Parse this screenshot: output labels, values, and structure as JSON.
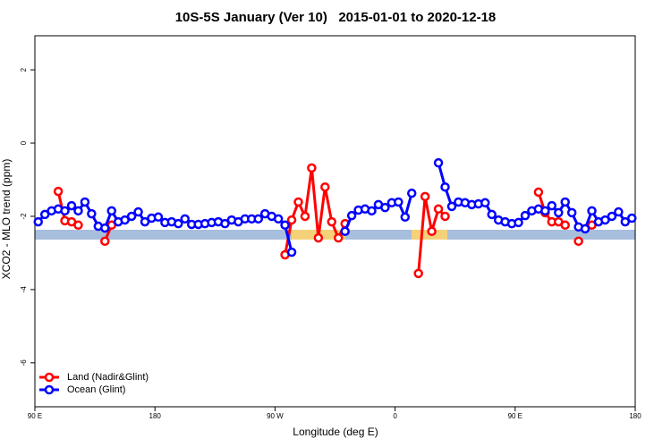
{
  "chart_data": {
    "type": "line",
    "title": "10S-5S January (Ver 10)   2015-01-01 to 2020-12-18",
    "x_label": "Longitude (deg E)",
    "y_label": "XCO2 - MLO trend (ppm)",
    "xlim": [
      90,
      540
    ],
    "xticks": [
      {
        "value": 90,
        "label": "90 E"
      },
      {
        "value": 180,
        "label": "180"
      },
      {
        "value": 270,
        "label": "90 W"
      },
      {
        "value": 360,
        "label": "0"
      },
      {
        "value": 450,
        "label": "90 E"
      },
      {
        "value": 540,
        "label": "180"
      }
    ],
    "ylim": [
      -7.2,
      2.93
    ],
    "yticks": [
      2,
      0,
      -2,
      -4,
      -6
    ],
    "legend": "bottom-left",
    "x": [
      92.5,
      97.5,
      102.5,
      107.5,
      112.5,
      117.5,
      122.5,
      127.5,
      132.5,
      137.5,
      142.5,
      147.5,
      152.5,
      157.5,
      162.5,
      167.5,
      172.5,
      177.5,
      182.5,
      187.5,
      192.5,
      197.5,
      202.5,
      207.5,
      212.5,
      217.5,
      222.5,
      227.5,
      232.5,
      237.5,
      242.5,
      247.5,
      252.5,
      257.5,
      262.5,
      267.5,
      272.5,
      277.5,
      282.5,
      287.5,
      292.5,
      297.5,
      302.5,
      307.5,
      312.5,
      317.5,
      322.5,
      327.5,
      332.5,
      337.5,
      342.5,
      347.5,
      352.5,
      357.5,
      362.5,
      367.5,
      372.5,
      377.5,
      382.5,
      387.5,
      392.5,
      397.5,
      402.5,
      407.5,
      412.5,
      417.5,
      422.5,
      427.5,
      432.5,
      437.5,
      442.5,
      447.5,
      452.5,
      457.5,
      462.5,
      467.5,
      472.5,
      477.5,
      482.5,
      487.5,
      492.5,
      497.5,
      502.5,
      507.5,
      512.5,
      517.5,
      522.5,
      527.5,
      532.5,
      537.5
    ],
    "series": [
      {
        "name": "Land (Nadir&Glint)",
        "color": "#ff0000",
        "values": [
          null,
          null,
          null,
          -1.32,
          -2.12,
          -2.15,
          -2.24,
          null,
          null,
          null,
          -2.68,
          -2.24,
          null,
          null,
          null,
          null,
          null,
          null,
          null,
          null,
          null,
          null,
          null,
          null,
          null,
          null,
          null,
          null,
          null,
          null,
          null,
          null,
          null,
          null,
          null,
          null,
          null,
          -3.05,
          -2.1,
          -1.61,
          -2.0,
          -0.68,
          -2.59,
          -1.2,
          -2.15,
          -2.59,
          -2.2,
          null,
          null,
          null,
          null,
          null,
          null,
          null,
          null,
          null,
          null,
          -3.56,
          -1.46,
          -2.41,
          -1.8,
          -2.0,
          null,
          null,
          null,
          null,
          null,
          null,
          null,
          null,
          null,
          null,
          null,
          null,
          null,
          -1.34,
          -1.9,
          -2.15,
          -2.15,
          -2.24,
          null,
          -2.68,
          null,
          -2.24,
          null,
          null,
          null,
          null,
          null,
          null
        ]
      },
      {
        "name": "Ocean (Glint)",
        "color": "#0000ff",
        "values": [
          -2.15,
          -1.95,
          -1.85,
          -1.8,
          -1.85,
          -1.71,
          -1.85,
          -1.61,
          -1.93,
          -2.27,
          -2.32,
          -1.85,
          -2.15,
          -2.1,
          -2.0,
          -1.88,
          -2.15,
          -2.05,
          -2.02,
          -2.17,
          -2.15,
          -2.2,
          -2.07,
          -2.22,
          -2.22,
          -2.2,
          -2.17,
          -2.15,
          -2.2,
          -2.1,
          -2.15,
          -2.07,
          -2.07,
          -2.07,
          -1.93,
          -2.0,
          -2.07,
          -2.24,
          -2.98,
          null,
          null,
          null,
          null,
          null,
          null,
          null,
          -2.41,
          -1.98,
          -1.83,
          -1.8,
          -1.85,
          -1.68,
          -1.76,
          -1.63,
          -1.61,
          -2.02,
          -1.37,
          null,
          null,
          null,
          -0.54,
          -1.2,
          -1.73,
          -1.61,
          -1.63,
          -1.68,
          -1.66,
          -1.63,
          -1.95,
          -2.1,
          -2.15,
          -2.2,
          -2.17,
          -1.98,
          -1.85,
          -1.8,
          -1.85,
          -1.71,
          -1.9,
          -1.61,
          -1.9,
          -2.29,
          -2.34,
          -1.85,
          -2.15,
          -2.1,
          -2.0,
          -1.88,
          -2.15,
          -2.05
        ]
      }
    ]
  }
}
